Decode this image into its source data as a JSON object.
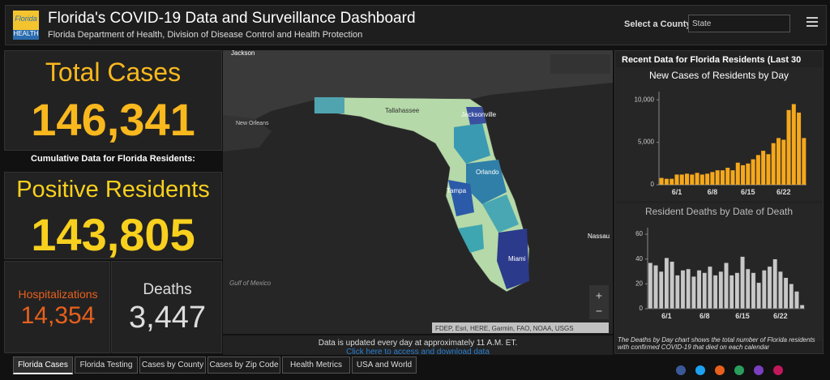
{
  "header": {
    "logo_top": "Florida",
    "logo_bottom": "HEALTH",
    "title": "Florida's COVID-19 Data and Surveillance Dashboard",
    "subtitle": "Florida Department of Health, Division of Disease Control and Health Protection",
    "county_label": "Select a County",
    "county_select": "State"
  },
  "summary": {
    "total_cases": {
      "label": "Total Cases",
      "value": "146,341"
    },
    "cumulative_note": "Cumulative Data for Florida Residents:",
    "positive_residents": {
      "label": "Positive Residents",
      "value": "143,805"
    },
    "hospitalizations": {
      "label": "Hospitalizations",
      "value": "14,354"
    },
    "deaths": {
      "label": "Deaths",
      "value": "3,447"
    }
  },
  "map": {
    "labels": [
      "Jackson",
      "New Orleans",
      "Gulf of Mexico",
      "Tallahassee",
      "Jacksonville",
      "Orlando",
      "Tampa",
      "Miami",
      "Nassau"
    ],
    "attribution": "FDEP, Esri, HERE, Garmin, FAO, NOAA, USGS",
    "update_note": "Data is updated every day at approximately 11 A.M. ET.",
    "download_link": "Click here to access and download data"
  },
  "panel_title": "Recent Data for Florida Residents (Last 30",
  "chart_data": [
    {
      "type": "bar",
      "title": "New Cases of Residents by Day",
      "categories": [
        null,
        null,
        null,
        "6/1",
        null,
        null,
        null,
        null,
        null,
        null,
        "6/8",
        null,
        null,
        null,
        null,
        null,
        null,
        "6/15",
        null,
        null,
        null,
        null,
        null,
        null,
        "6/22",
        null,
        null,
        null,
        null
      ],
      "values": [
        800,
        700,
        700,
        1200,
        1200,
        1300,
        1200,
        1400,
        1200,
        1300,
        1500,
        1700,
        1700,
        2000,
        1700,
        2600,
        2300,
        2500,
        3000,
        3500,
        4000,
        3600,
        4900,
        5500,
        5300,
        8800,
        9500,
        8500,
        5500
      ],
      "color": "#f5a81c",
      "ylim": [
        0,
        10500
      ],
      "yticks": [
        0,
        {
          "value": 5000,
          "label": "5,000"
        },
        {
          "value": 10000,
          "label": "10,000"
        }
      ]
    },
    {
      "type": "bar",
      "title": "Resident Deaths by Date of Death",
      "categories": [
        null,
        null,
        null,
        "6/1",
        null,
        null,
        null,
        null,
        null,
        null,
        "6/8",
        null,
        null,
        null,
        null,
        null,
        null,
        "6/15",
        null,
        null,
        null,
        null,
        null,
        null,
        "6/22",
        null,
        null,
        null,
        null
      ],
      "values": [
        37,
        35,
        30,
        41,
        38,
        27,
        31,
        32,
        26,
        31,
        29,
        34,
        27,
        30,
        37,
        27,
        29,
        42,
        32,
        29,
        21,
        31,
        34,
        40,
        30,
        25,
        20,
        14,
        3
      ],
      "color": "#c8c8c8",
      "ylim": [
        0,
        62
      ],
      "yticks": [
        0,
        20,
        40,
        60
      ]
    }
  ],
  "note": "The Deaths by Day chart shows the total number of Florida residents with confirmed COVID-19 that died on each calendar",
  "tabs": [
    "Florida Cases",
    "Florida Testing",
    "Cases by County",
    "Cases by Zip Code",
    "Health Metrics",
    "USA and World"
  ]
}
